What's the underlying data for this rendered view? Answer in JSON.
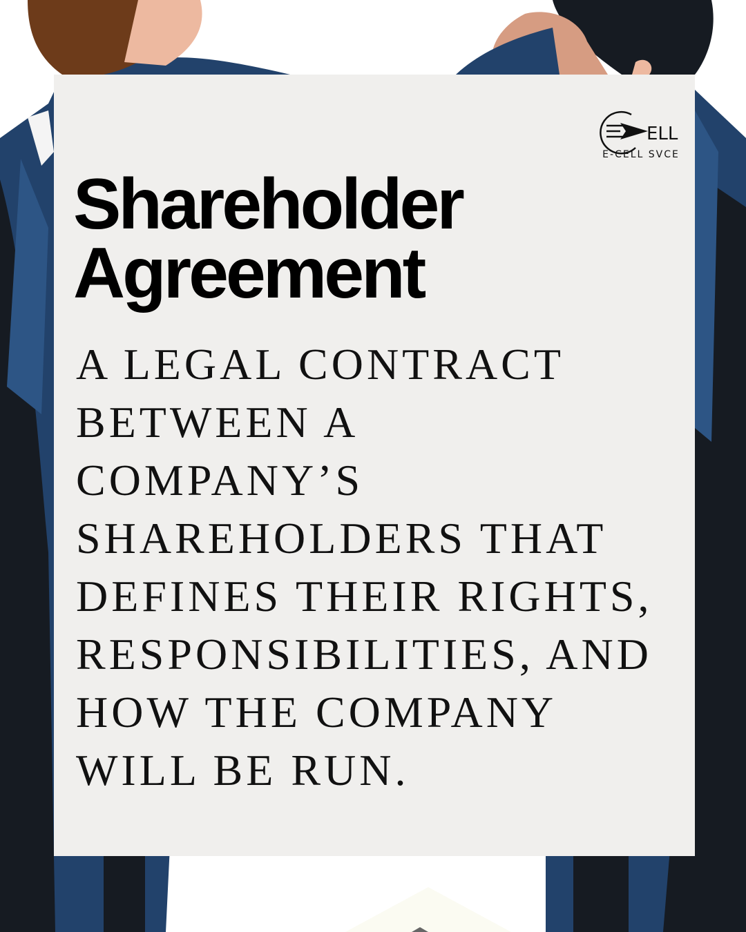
{
  "logo": {
    "mark_text": "ELL",
    "caption": "E-CELL SVCE"
  },
  "headline": {
    "line1": "Shareholder",
    "line2": "Agreement"
  },
  "description_lines": [
    "A LEGAL CONTRACT",
    "BETWEEN A",
    "COMPANY’S",
    "SHAREHOLDERS THAT",
    "DEFINES THEIR RIGHTS,",
    "RESPONSIBILITIES, AND",
    "HOW THE COMPANY",
    "WILL BE RUN."
  ],
  "colors": {
    "card": "#f0efed",
    "navy": "#22426b",
    "dark": "#161b22",
    "skin": "#edb9a0",
    "hair_brown": "#6d3b1a"
  }
}
